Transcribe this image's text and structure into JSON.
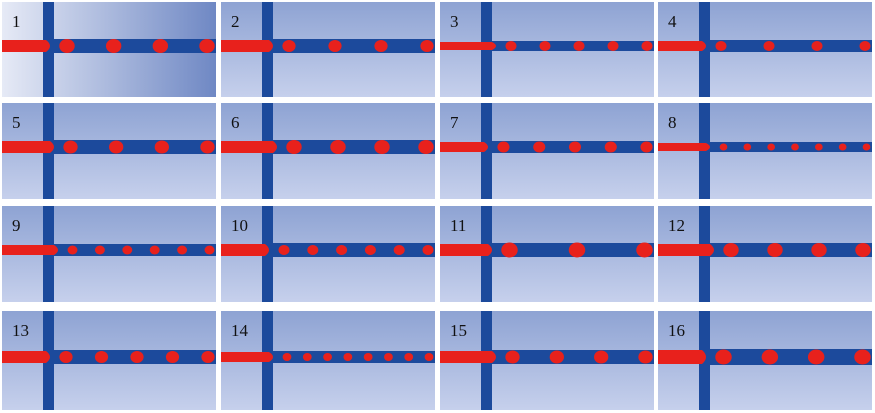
{
  "panels": [
    {
      "label": "1"
    },
    {
      "label": "2"
    },
    {
      "label": "3"
    },
    {
      "label": "4"
    },
    {
      "label": "5"
    },
    {
      "label": "6"
    },
    {
      "label": "7"
    },
    {
      "label": "8"
    },
    {
      "label": "9"
    },
    {
      "label": "10"
    },
    {
      "label": "11"
    },
    {
      "label": "12"
    },
    {
      "label": "13"
    },
    {
      "label": "14"
    },
    {
      "label": "15"
    },
    {
      "label": "16"
    }
  ],
  "colors": {
    "channel": "#1c4a9c",
    "dispersed_phase": "#e8211c",
    "background_top": "#8ea3d3",
    "background_bottom": "#c6d0ec"
  }
}
